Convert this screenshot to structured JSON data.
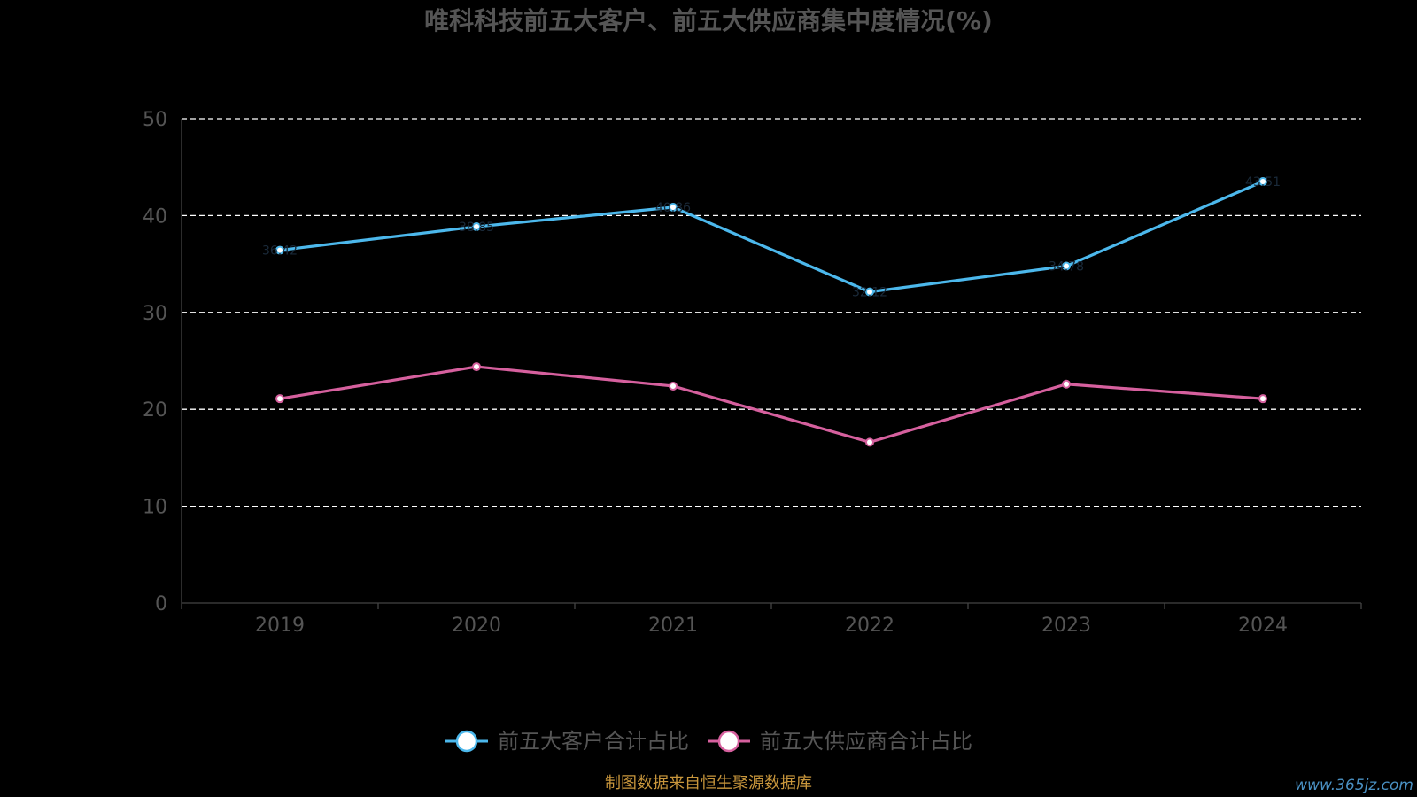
{
  "chart_data": {
    "type": "line",
    "title": "唯科科技前五大客户、前五大供应商集中度情况(%)",
    "categories": [
      "2019",
      "2020",
      "2021",
      "2022",
      "2023",
      "2024"
    ],
    "ylim": [
      0,
      50
    ],
    "yticks": [
      "0",
      "10",
      "20",
      "30",
      "40",
      "50"
    ],
    "grid": true,
    "legend_position": "bottom",
    "series": [
      {
        "name": "前五大客户合计占比",
        "color": "#4cb8ec",
        "values": [
          36.42,
          38.85,
          40.86,
          32.12,
          34.78,
          43.51
        ]
      },
      {
        "name": "前五大供应商合计占比",
        "color": "#d6609e",
        "values": [
          21.1,
          24.4,
          22.4,
          16.6,
          22.6,
          21.1
        ]
      }
    ]
  },
  "footer": {
    "source": "制图数据来自恒生聚源数据库",
    "watermark": "www.365jz.com"
  }
}
